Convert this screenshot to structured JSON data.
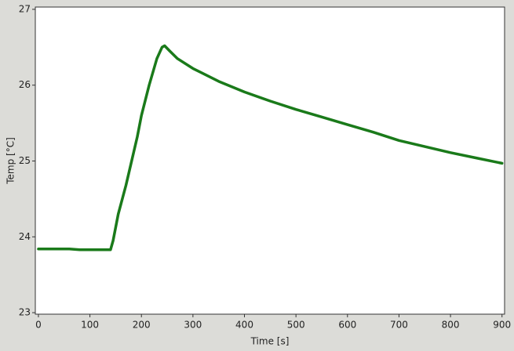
{
  "chart_data": {
    "type": "line",
    "x_label": "Time [s]",
    "y_label": "Temp [°C]",
    "x": [
      0,
      20,
      40,
      60,
      80,
      100,
      120,
      140,
      145,
      155,
      170,
      192,
      200,
      215,
      230,
      240,
      245,
      255,
      270,
      300,
      350,
      400,
      450,
      500,
      550,
      600,
      650,
      700,
      750,
      800,
      850,
      900
    ],
    "series": [
      {
        "name": "Temp",
        "color": "#1a7a1a",
        "values": [
          23.84,
          23.84,
          23.84,
          23.84,
          23.83,
          23.83,
          23.83,
          23.83,
          23.95,
          24.3,
          24.68,
          25.32,
          25.6,
          26.0,
          26.35,
          26.5,
          26.52,
          26.45,
          26.35,
          26.22,
          26.05,
          25.91,
          25.79,
          25.68,
          25.58,
          25.48,
          25.38,
          25.27,
          25.19,
          25.11,
          25.04,
          24.97
        ]
      }
    ],
    "xlim": [
      -6,
      905
    ],
    "ylim": [
      22.98,
      27.03
    ],
    "xticks": [
      0,
      100,
      200,
      300,
      400,
      500,
      600,
      700,
      800,
      900
    ],
    "yticks": [
      23,
      24,
      25,
      26,
      27
    ]
  }
}
